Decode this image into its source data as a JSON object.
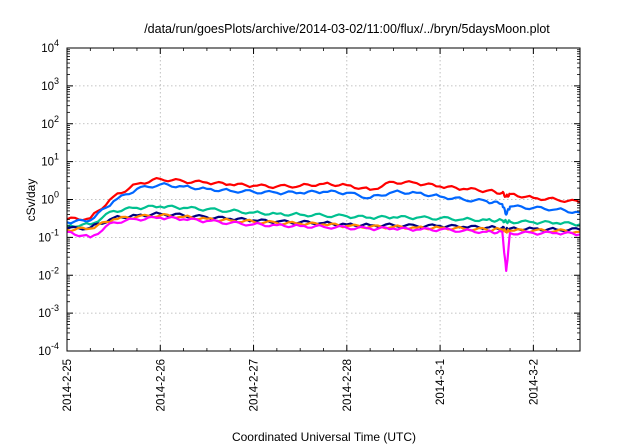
{
  "chart_data": {
    "type": "line",
    "title": "/data/run/goesPlots/archive/2014-03-02/11:00/flux/../bryn/5daysMoon.plot",
    "xlabel": "Coordinated Universal Time (UTC)",
    "ylabel": "cSv/day",
    "yscale": "log",
    "ylim": [
      0.0001,
      10000
    ],
    "xlim": [
      "2014-02-25",
      "2014-03-02T12:00"
    ],
    "grid": true,
    "x_tick_labels": [
      "2014-2-25",
      "2014-2-26",
      "2014-2-27",
      "2014-2-28",
      "2014-3-1",
      "2014-3-2"
    ],
    "y_tick_labels": [
      {
        "base": "10",
        "exp": "-4"
      },
      {
        "base": "10",
        "exp": "-3"
      },
      {
        "base": "10",
        "exp": "-2"
      },
      {
        "base": "10",
        "exp": "-1"
      },
      {
        "base": "10",
        "exp": "0"
      },
      {
        "base": "10",
        "exp": "1"
      },
      {
        "base": "10",
        "exp": "2"
      },
      {
        "base": "10",
        "exp": "3"
      },
      {
        "base": "10",
        "exp": "4"
      }
    ],
    "x": [
      "2014-02-25T00:00",
      "2014-02-25T06:00",
      "2014-02-25T12:00",
      "2014-02-25T18:00",
      "2014-02-26T00:00",
      "2014-02-26T06:00",
      "2014-02-26T12:00",
      "2014-02-26T18:00",
      "2014-02-27T00:00",
      "2014-02-27T06:00",
      "2014-02-27T12:00",
      "2014-02-27T18:00",
      "2014-02-28T00:00",
      "2014-02-28T06:00",
      "2014-02-28T12:00",
      "2014-02-28T18:00",
      "2014-03-01T00:00",
      "2014-03-01T06:00",
      "2014-03-01T12:00",
      "2014-03-01T16:00",
      "2014-03-01T17:00",
      "2014-03-01T18:00",
      "2014-03-02T00:00",
      "2014-03-02T06:00",
      "2014-03-02T12:00"
    ],
    "series": [
      {
        "color": "#ff0000",
        "values": [
          0.3,
          0.32,
          1.2,
          2.6,
          3.5,
          3.0,
          2.8,
          2.5,
          2.3,
          2.2,
          2.3,
          2.6,
          2.4,
          1.8,
          2.9,
          2.7,
          2.2,
          1.9,
          1.7,
          1.5,
          1.2,
          1.4,
          1.1,
          1.0,
          0.85
        ]
      },
      {
        "color": "#0066ff",
        "values": [
          0.25,
          0.28,
          0.9,
          1.9,
          2.5,
          2.2,
          1.9,
          1.7,
          1.6,
          1.5,
          1.5,
          1.6,
          1.5,
          1.1,
          1.6,
          1.5,
          1.2,
          1.0,
          0.9,
          0.75,
          0.4,
          0.65,
          0.6,
          0.55,
          0.45
        ]
      },
      {
        "color": "#00c090",
        "values": [
          0.2,
          0.22,
          0.5,
          0.6,
          0.65,
          0.6,
          0.55,
          0.5,
          0.45,
          0.42,
          0.4,
          0.38,
          0.36,
          0.33,
          0.34,
          0.33,
          0.32,
          0.3,
          0.29,
          0.28,
          0.26,
          0.26,
          0.25,
          0.24,
          0.22
        ]
      },
      {
        "color": "#000080",
        "values": [
          0.17,
          0.18,
          0.33,
          0.38,
          0.42,
          0.38,
          0.34,
          0.31,
          0.28,
          0.26,
          0.25,
          0.24,
          0.22,
          0.21,
          0.21,
          0.2,
          0.2,
          0.19,
          0.18,
          0.18,
          0.16,
          0.17,
          0.17,
          0.16,
          0.16
        ]
      },
      {
        "color": "#ff8800",
        "values": [
          0.16,
          0.17,
          0.3,
          0.35,
          0.38,
          0.35,
          0.31,
          0.28,
          0.26,
          0.24,
          0.23,
          0.22,
          0.2,
          0.19,
          0.19,
          0.18,
          0.18,
          0.17,
          0.16,
          0.16,
          0.14,
          0.15,
          0.15,
          0.15,
          0.14
        ]
      },
      {
        "color": "#ff00ff",
        "values": [
          0.14,
          0.1,
          0.25,
          0.3,
          0.33,
          0.3,
          0.27,
          0.24,
          0.22,
          0.21,
          0.2,
          0.19,
          0.18,
          0.17,
          0.17,
          0.16,
          0.16,
          0.15,
          0.14,
          0.14,
          0.013,
          0.13,
          0.13,
          0.13,
          0.12
        ]
      }
    ]
  }
}
